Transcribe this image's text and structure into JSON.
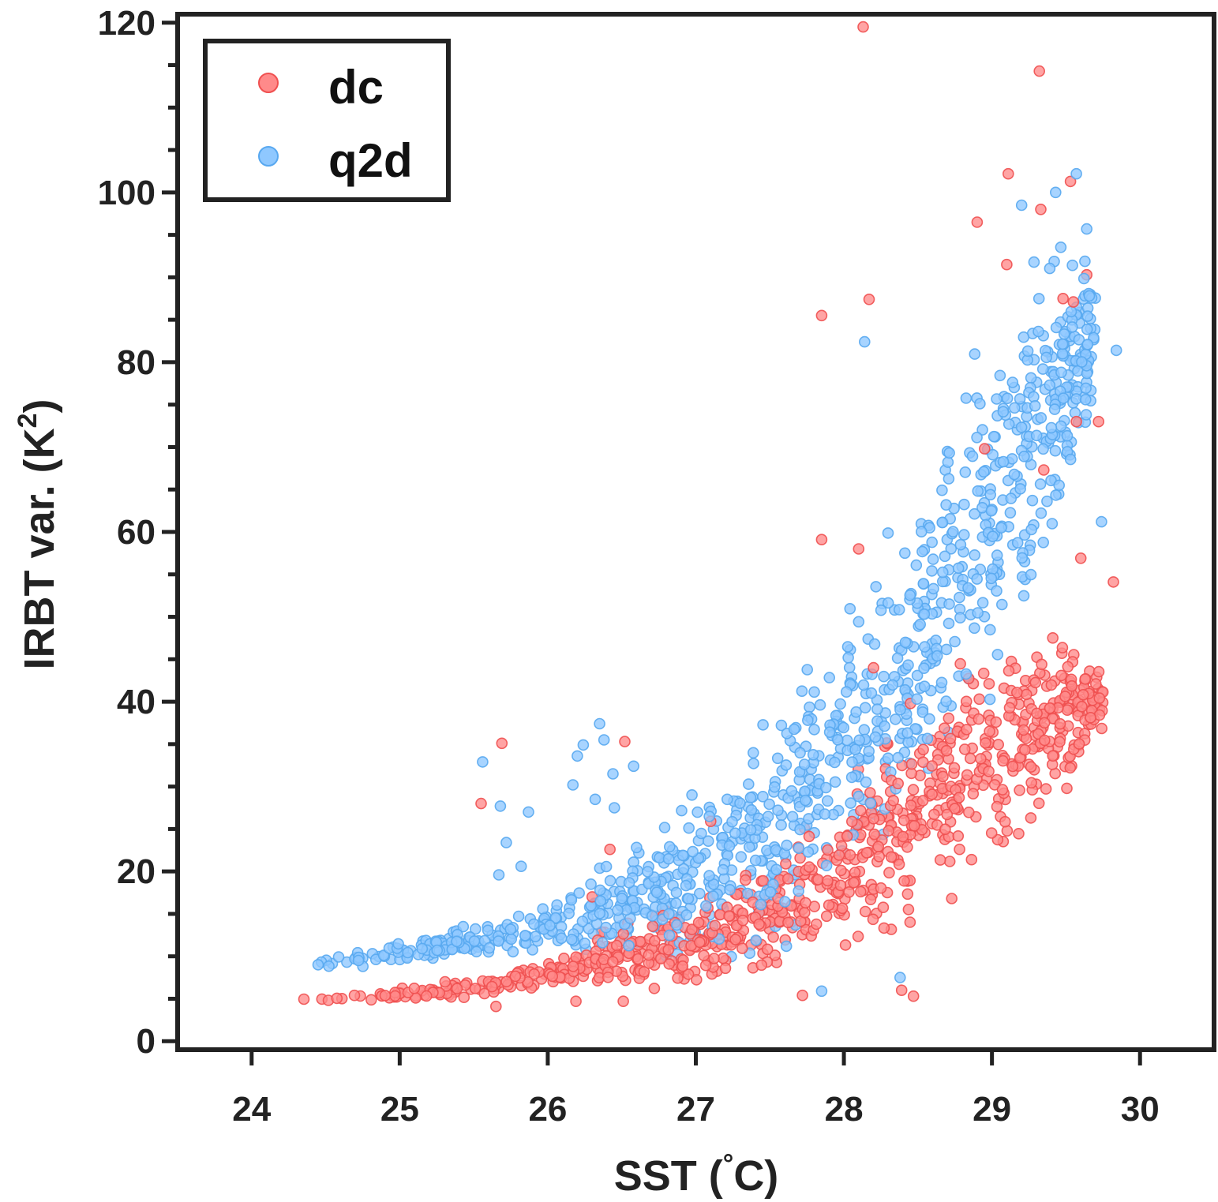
{
  "chart_data": {
    "type": "scatter",
    "title": "",
    "xlabel_prefix": "SST (",
    "xlabel_degree": "°",
    "xlabel_suffix": "C)",
    "ylabel_prefix": "IRBT var. (K",
    "ylabel_sup": "2",
    "ylabel_suffix": ")",
    "xlim": [
      23.5,
      30.5
    ],
    "ylim": [
      -1,
      121
    ],
    "xticks": [
      24,
      25,
      26,
      27,
      28,
      29,
      30
    ],
    "yticks": [
      0,
      20,
      40,
      60,
      80,
      100,
      120
    ],
    "yminor_step": 5,
    "legend_position": "top-left",
    "colors": {
      "axes": "#222222",
      "dc_fill": "#ff8a8a",
      "dc_edge": "#f05050",
      "q2d_fill": "#8fc8ff",
      "q2d_edge": "#58a8f0"
    },
    "series": [
      {
        "name": "dc",
        "outliers": [
          {
            "x": 28.13,
            "y": 119.5
          },
          {
            "x": 29.32,
            "y": 114.3
          },
          {
            "x": 29.11,
            "y": 102.2
          },
          {
            "x": 29.53,
            "y": 101.3
          },
          {
            "x": 28.9,
            "y": 96.5
          },
          {
            "x": 29.33,
            "y": 98.0
          },
          {
            "x": 29.1,
            "y": 91.5
          },
          {
            "x": 28.17,
            "y": 87.4
          },
          {
            "x": 27.85,
            "y": 85.5
          },
          {
            "x": 29.64,
            "y": 90.3
          },
          {
            "x": 29.55,
            "y": 87.1
          },
          {
            "x": 29.48,
            "y": 87.5
          },
          {
            "x": 29.57,
            "y": 73.0
          },
          {
            "x": 29.72,
            "y": 73.0
          },
          {
            "x": 29.82,
            "y": 54.1
          },
          {
            "x": 29.6,
            "y": 56.9
          },
          {
            "x": 29.35,
            "y": 67.3
          },
          {
            "x": 28.95,
            "y": 69.8
          },
          {
            "x": 27.85,
            "y": 59.1
          },
          {
            "x": 28.1,
            "y": 58.0
          },
          {
            "x": 28.2,
            "y": 44.0
          },
          {
            "x": 25.55,
            "y": 28.0
          },
          {
            "x": 25.69,
            "y": 35.1
          },
          {
            "x": 26.52,
            "y": 35.3
          },
          {
            "x": 26.42,
            "y": 22.6
          },
          {
            "x": 27.1,
            "y": 25.9
          },
          {
            "x": 28.39,
            "y": 6.0
          },
          {
            "x": 28.47,
            "y": 5.3
          },
          {
            "x": 27.72,
            "y": 5.4
          },
          {
            "x": 25.65,
            "y": 4.1
          },
          {
            "x": 26.51,
            "y": 4.7
          },
          {
            "x": 26.19,
            "y": 4.7
          },
          {
            "x": 27.2,
            "y": 8.6
          },
          {
            "x": 26.78,
            "y": 14.8
          },
          {
            "x": 26.3,
            "y": 17.0
          }
        ],
        "band": [
          {
            "x": 24.3,
            "lo": 4.0,
            "hi": 5.5
          },
          {
            "x": 25.0,
            "lo": 4.5,
            "hi": 6.5
          },
          {
            "x": 25.5,
            "lo": 5.0,
            "hi": 7.5
          },
          {
            "x": 26.0,
            "lo": 6.0,
            "hi": 10.0
          },
          {
            "x": 26.5,
            "lo": 5.0,
            "hi": 15.0
          },
          {
            "x": 27.0,
            "lo": 5.0,
            "hi": 18.0
          },
          {
            "x": 27.5,
            "lo": 6.0,
            "hi": 24.0
          },
          {
            "x": 28.0,
            "lo": 8.0,
            "hi": 32.0
          },
          {
            "x": 28.5,
            "lo": 12.0,
            "hi": 44.0
          },
          {
            "x": 29.0,
            "lo": 19.0,
            "hi": 48.0
          },
          {
            "x": 29.5,
            "lo": 28.0,
            "hi": 50.0
          },
          {
            "x": 29.75,
            "lo": 35.0,
            "hi": 45.0
          }
        ],
        "band_count": 850
      },
      {
        "name": "q2d",
        "outliers": [
          {
            "x": 28.14,
            "y": 82.4
          },
          {
            "x": 29.84,
            "y": 81.4
          },
          {
            "x": 29.74,
            "y": 61.2
          },
          {
            "x": 25.56,
            "y": 32.9
          },
          {
            "x": 25.68,
            "y": 27.7
          },
          {
            "x": 25.72,
            "y": 23.4
          },
          {
            "x": 25.67,
            "y": 19.6
          },
          {
            "x": 25.82,
            "y": 20.6
          },
          {
            "x": 25.87,
            "y": 27.0
          },
          {
            "x": 26.35,
            "y": 37.4
          },
          {
            "x": 26.38,
            "y": 35.5
          },
          {
            "x": 26.24,
            "y": 34.9
          },
          {
            "x": 26.44,
            "y": 31.5
          },
          {
            "x": 26.58,
            "y": 32.4
          },
          {
            "x": 26.17,
            "y": 30.2
          },
          {
            "x": 26.2,
            "y": 33.6
          },
          {
            "x": 26.32,
            "y": 28.5
          },
          {
            "x": 26.45,
            "y": 27.5
          },
          {
            "x": 28.38,
            "y": 7.5
          },
          {
            "x": 27.85,
            "y": 5.9
          },
          {
            "x": 29.57,
            "y": 102.2
          },
          {
            "x": 29.43,
            "y": 100.0
          },
          {
            "x": 29.2,
            "y": 98.5
          },
          {
            "x": 29.64,
            "y": 95.7
          }
        ],
        "band": [
          {
            "x": 24.3,
            "lo": 7.5,
            "hi": 9.5
          },
          {
            "x": 25.0,
            "lo": 9.0,
            "hi": 12.0
          },
          {
            "x": 25.5,
            "lo": 9.5,
            "hi": 14.0
          },
          {
            "x": 26.0,
            "lo": 10.0,
            "hi": 17.0
          },
          {
            "x": 26.5,
            "lo": 9.0,
            "hi": 23.0
          },
          {
            "x": 27.0,
            "lo": 6.0,
            "hi": 32.0
          },
          {
            "x": 27.5,
            "lo": 8.0,
            "hi": 42.0
          },
          {
            "x": 28.0,
            "lo": 14.0,
            "hi": 55.0
          },
          {
            "x": 28.5,
            "lo": 22.0,
            "hi": 70.0
          },
          {
            "x": 29.0,
            "lo": 35.0,
            "hi": 88.0
          },
          {
            "x": 29.4,
            "lo": 52.0,
            "hi": 100.0
          },
          {
            "x": 29.7,
            "lo": 72.0,
            "hi": 96.0
          }
        ],
        "band_count": 1000
      }
    ]
  }
}
